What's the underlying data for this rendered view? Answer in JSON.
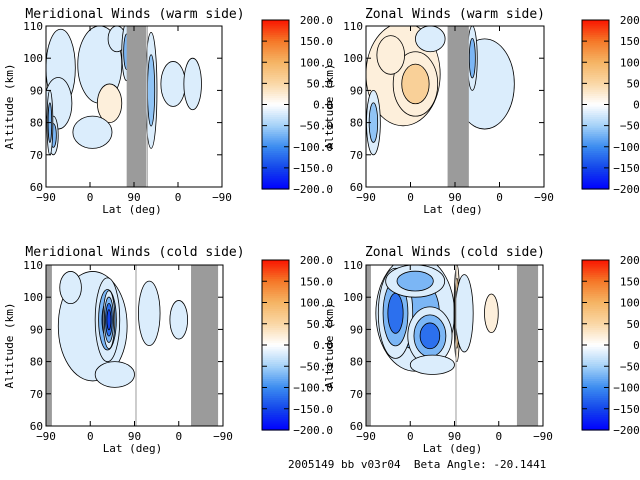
{
  "footer": {
    "orbit_text": "2005149 bb v03r04",
    "beta_label": "Beta Angle:",
    "beta_value": "-20.1441"
  },
  "colors": {
    "data_gap": "#9b9b9b",
    "line": "#000000"
  },
  "chart_data": [
    {
      "type": "heatmap",
      "title": "Meridional Winds (warm side)",
      "xlabel": "Lat (deg)",
      "ylabel": "Altitude (km)",
      "x_ticks": [
        "-90",
        "0",
        "90",
        "0",
        "-90"
      ],
      "y_ticks": [
        "60",
        "70",
        "80",
        "90",
        "100",
        "110"
      ],
      "ylim": [
        60,
        110
      ],
      "colorbar": {
        "ticks": [
          "200.0",
          "150.0",
          "100.0",
          "50.0",
          "0.0",
          "-50.0",
          "-100.0",
          "-150.0",
          "-200.0"
        ],
        "range": [
          -200,
          200
        ]
      },
      "gaps": [
        [
          75,
          115
        ],
        [
          116,
          117
        ]
      ],
      "blobs": [
        {
          "x": -60,
          "y": 97,
          "rx": 30,
          "ry": 12,
          "v": -45
        },
        {
          "x": -65,
          "y": 86,
          "rx": 28,
          "ry": 8,
          "v": -40
        },
        {
          "x": -75,
          "y": 76,
          "rx": 10,
          "ry": 6,
          "v": -70
        },
        {
          "x": 20,
          "y": 98,
          "rx": 45,
          "ry": 12,
          "v": -40
        },
        {
          "x": 40,
          "y": 86,
          "rx": 25,
          "ry": 6,
          "v": 25
        },
        {
          "x": 5,
          "y": 77,
          "rx": 40,
          "ry": 5,
          "v": -25
        },
        {
          "x": 55,
          "y": 106,
          "rx": 18,
          "ry": 4,
          "v": -40
        },
        {
          "x": 75,
          "y": 102,
          "rx": 10,
          "ry": 9,
          "v": -90
        },
        {
          "x": 125,
          "y": 90,
          "rx": 12,
          "ry": 18,
          "v": -60
        },
        {
          "x": 170,
          "y": 92,
          "rx": 25,
          "ry": 7,
          "v": -30
        },
        {
          "x": 210,
          "y": 92,
          "rx": 18,
          "ry": 8,
          "v": -30
        },
        {
          "x": -82,
          "y": 80,
          "rx": 6,
          "ry": 10,
          "v": -80
        }
      ]
    },
    {
      "type": "heatmap",
      "title": "Zonal Winds (warm side)",
      "xlabel": "Lat (deg)",
      "ylabel": "Altitude (km)",
      "x_ticks": [
        "-90",
        "0",
        "90",
        "0",
        "-90"
      ],
      "y_ticks": [
        "60",
        "70",
        "80",
        "90",
        "100",
        "110"
      ],
      "ylim": [
        60,
        110
      ],
      "colorbar": {
        "ticks": [
          "200.0",
          "150.0",
          "100.0",
          "50.0",
          "0.0",
          "-50.0",
          "-100.0",
          "-150.0",
          "-200.0"
        ],
        "range": [
          -200,
          200
        ]
      },
      "gaps": [
        [
          75,
          118
        ]
      ],
      "blobs": [
        {
          "x": -15,
          "y": 95,
          "rx": 75,
          "ry": 16,
          "v": 40
        },
        {
          "x": 10,
          "y": 92,
          "rx": 45,
          "ry": 10,
          "v": 60
        },
        {
          "x": -40,
          "y": 101,
          "rx": 28,
          "ry": 6,
          "v": 45
        },
        {
          "x": -75,
          "y": 80,
          "rx": 14,
          "ry": 10,
          "v": -60
        },
        {
          "x": 40,
          "y": 106,
          "rx": 30,
          "ry": 4,
          "v": -30
        },
        {
          "x": 150,
          "y": 92,
          "rx": 60,
          "ry": 14,
          "v": -40
        },
        {
          "x": 125,
          "y": 100,
          "rx": 10,
          "ry": 10,
          "v": -80
        }
      ]
    },
    {
      "type": "heatmap",
      "title": "Meridional Winds (cold side)",
      "xlabel": "Lat (deg)",
      "ylabel": "Altitude (km)",
      "x_ticks": [
        "-90",
        "0",
        "90",
        "0",
        "-90"
      ],
      "y_ticks": [
        "60",
        "70",
        "80",
        "90",
        "100",
        "110"
      ],
      "ylim": [
        60,
        110
      ],
      "colorbar": {
        "ticks": [
          "200.0",
          "150.0",
          "100.0",
          "50.0",
          "0.0",
          "-50.0",
          "-100.0",
          "-150.0",
          "-200.0"
        ],
        "range": [
          -200,
          200
        ]
      },
      "gaps": [
        [
          -100,
          -78
        ],
        [
          205,
          260
        ],
        [
          92,
          93
        ]
      ],
      "blobs": [
        {
          "x": 5,
          "y": 91,
          "rx": 70,
          "ry": 17,
          "v": -40
        },
        {
          "x": 35,
          "y": 93,
          "rx": 25,
          "ry": 13,
          "v": -110
        },
        {
          "x": 38,
          "y": 93,
          "rx": 12,
          "ry": 9,
          "v": -150
        },
        {
          "x": -40,
          "y": 103,
          "rx": 22,
          "ry": 5,
          "v": -45
        },
        {
          "x": 120,
          "y": 95,
          "rx": 22,
          "ry": 10,
          "v": -35
        },
        {
          "x": 180,
          "y": 93,
          "rx": 18,
          "ry": 6,
          "v": -25
        },
        {
          "x": 220,
          "y": 93,
          "rx": 12,
          "ry": 9,
          "v": 45
        },
        {
          "x": 50,
          "y": 76,
          "rx": 40,
          "ry": 4,
          "v": -25
        }
      ]
    },
    {
      "type": "heatmap",
      "title": "Zonal Winds (cold side)",
      "xlabel": "Lat (deg)",
      "ylabel": "Altitude (km)",
      "x_ticks": [
        "-90",
        "0",
        "90",
        "0",
        "-90"
      ],
      "y_ticks": [
        "60",
        "70",
        "80",
        "90",
        "100",
        "110"
      ],
      "ylim": [
        60,
        110
      ],
      "colorbar": {
        "ticks": [
          "200.0",
          "150.0",
          "100.0",
          "50.0",
          "0.0",
          "-50.0",
          "-100.0",
          "-150.0",
          "-200.0"
        ],
        "range": [
          -200,
          200
        ]
      },
      "gaps": [
        [
          -100,
          -80
        ],
        [
          217,
          260
        ],
        [
          92,
          93
        ]
      ],
      "blobs": [
        {
          "x": 10,
          "y": 95,
          "rx": 80,
          "ry": 18,
          "v": -90
        },
        {
          "x": -30,
          "y": 95,
          "rx": 35,
          "ry": 14,
          "v": -140
        },
        {
          "x": 40,
          "y": 88,
          "rx": 45,
          "ry": 9,
          "v": -120
        },
        {
          "x": 10,
          "y": 105,
          "rx": 60,
          "ry": 5,
          "v": -70
        },
        {
          "x": 95,
          "y": 95,
          "rx": 6,
          "ry": 15,
          "v": 130
        },
        {
          "x": 110,
          "y": 95,
          "rx": 18,
          "ry": 12,
          "v": -40
        },
        {
          "x": 165,
          "y": 95,
          "rx": 14,
          "ry": 6,
          "v": 25
        },
        {
          "x": 45,
          "y": 79,
          "rx": 45,
          "ry": 3,
          "v": -30
        }
      ]
    }
  ]
}
